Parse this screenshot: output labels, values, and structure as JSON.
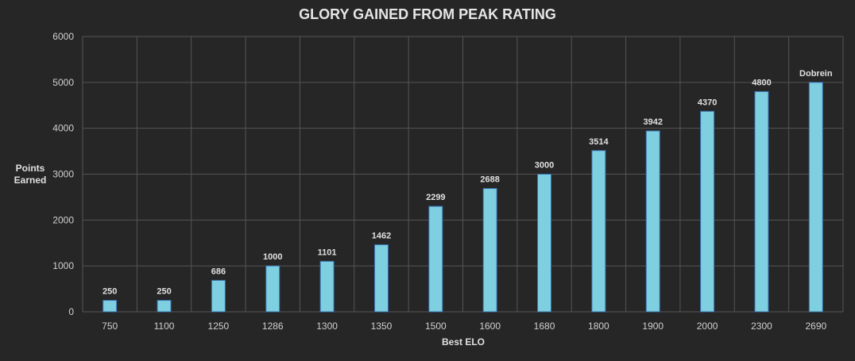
{
  "chart_data": {
    "type": "bar",
    "title": "GLORY GAINED FROM PEAK RATING",
    "xlabel": "Best ELO",
    "ylabel": [
      "Points",
      "Earned"
    ],
    "categories": [
      "750",
      "1100",
      "1250",
      "1286",
      "1300",
      "1350",
      "1500",
      "1600",
      "1680",
      "1800",
      "1900",
      "2000",
      "2300",
      "2690"
    ],
    "values": [
      250,
      250,
      686,
      1000,
      1101,
      1462,
      2299,
      2688,
      3000,
      3514,
      3942,
      4370,
      4800,
      5000
    ],
    "data_labels": [
      "250",
      "250",
      "686",
      "1000",
      "1101",
      "1462",
      "2299",
      "2688",
      "3000",
      "3514",
      "3942",
      "4370",
      "4800",
      "Dobrein"
    ],
    "ylim": [
      0,
      6000
    ],
    "yticks": [
      0,
      1000,
      2000,
      3000,
      4000,
      5000,
      6000
    ],
    "grid": true,
    "colors": {
      "background": "#262626",
      "bar_fill": "#7ecfe0",
      "bar_stroke": "#3a6fb0",
      "grid": "#555555",
      "text": "#d0d0d0"
    }
  }
}
